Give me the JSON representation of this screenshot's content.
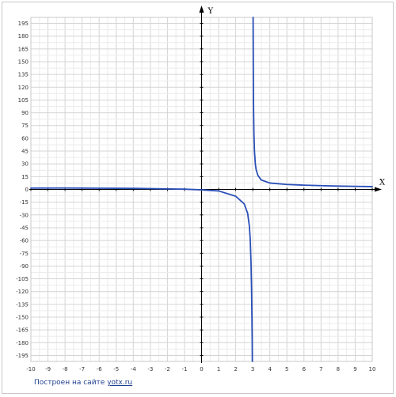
{
  "chart_data": {
    "type": "line",
    "title": "",
    "xlabel": "X",
    "ylabel": "Y",
    "xlim": [
      -10,
      10
    ],
    "ylim": [
      -202,
      202
    ],
    "x_ticks": [
      -10,
      -9,
      -8,
      -7,
      -6,
      -5,
      -4,
      -3,
      -2,
      -1,
      0,
      1,
      2,
      3,
      4,
      5,
      6,
      7,
      8,
      9,
      10
    ],
    "y_ticks": [
      195,
      180,
      165,
      150,
      135,
      120,
      105,
      90,
      75,
      60,
      45,
      30,
      15,
      0,
      -15,
      -30,
      -45,
      -60,
      -75,
      -90,
      -105,
      -120,
      -135,
      -150,
      -165,
      -180,
      -195
    ],
    "grid": true,
    "vertical_asymptote_x": 3,
    "series": [
      {
        "color": "#2a4fb8",
        "x": [
          -10,
          -8,
          -6,
          -4,
          -3,
          -2,
          -1,
          0,
          1,
          2,
          2.5,
          2.7,
          2.8,
          2.85,
          2.9,
          2.93,
          2.95,
          2.965,
          2.972,
          2.975
        ],
        "y": [
          1.5,
          1.6,
          1.4,
          1.2,
          0.9,
          0.6,
          0.3,
          -0.5,
          -1.8,
          -8,
          -17,
          -28,
          -43,
          -58,
          -88,
          -118,
          -148,
          -175,
          -195,
          -202
        ]
      },
      {
        "color": "#2a4fb8",
        "x": [
          3.02,
          3.025,
          3.03,
          3.04,
          3.05,
          3.07,
          3.1,
          3.15,
          3.2,
          3.3,
          3.5,
          4,
          5,
          6,
          7,
          8,
          9,
          10
        ],
        "y": [
          202,
          180,
          150,
          112,
          90,
          64,
          45,
          30,
          23,
          16.5,
          11,
          7.5,
          5.8,
          5,
          4.4,
          3.9,
          3.6,
          3.3
        ]
      }
    ]
  },
  "credit": {
    "prefix": "Построен на сайте ",
    "link": "yotx.ru"
  }
}
